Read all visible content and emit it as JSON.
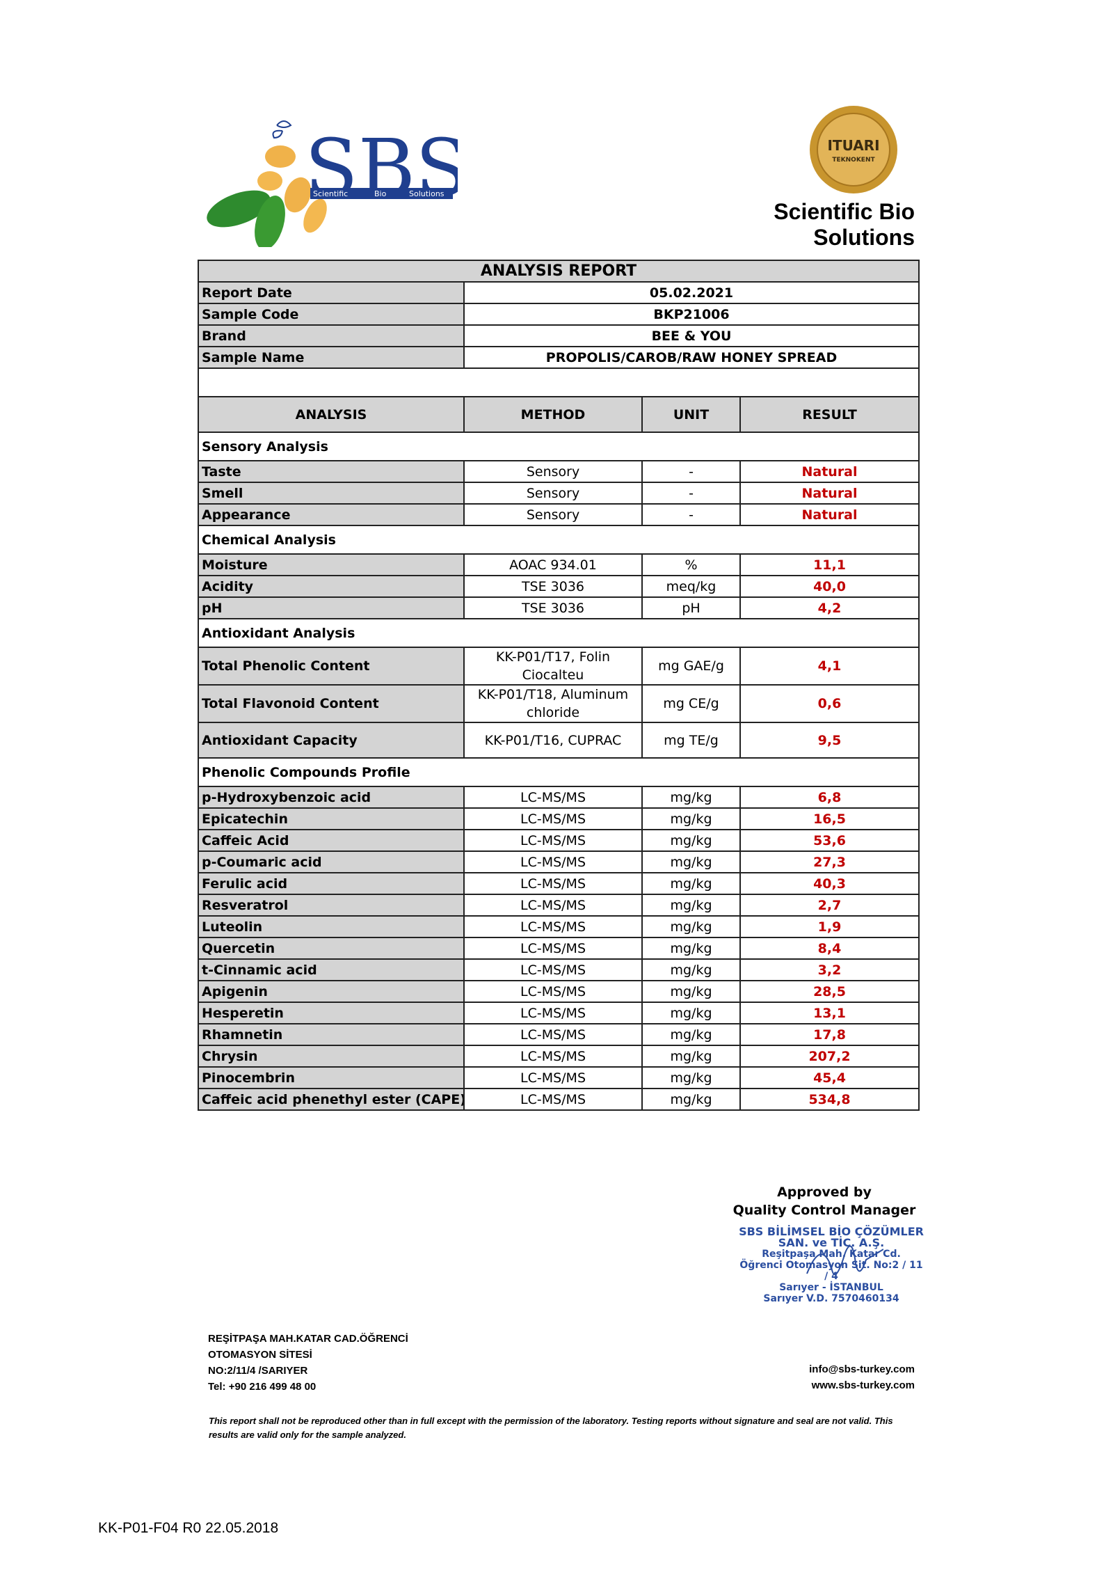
{
  "header": {
    "logo_text": "SBS",
    "logo_tagline": [
      "Scientific",
      "Bio",
      "Solutions"
    ],
    "seal_text": [
      "ITUARI",
      "TEKNOKENT"
    ],
    "company_name": "Scientific Bio Solutions"
  },
  "report": {
    "title": "ANALYSIS REPORT",
    "info": [
      {
        "label": "Report Date",
        "value": "05.02.2021"
      },
      {
        "label": "Sample Code",
        "value": "BKP21006"
      },
      {
        "label": "Brand",
        "value": "BEE & YOU"
      },
      {
        "label": "Sample Name",
        "value": "PROPOLIS/CAROB/RAW HONEY SPREAD"
      }
    ],
    "columns": [
      "ANALYSIS",
      "METHOD",
      "UNIT",
      "RESULT"
    ],
    "sections": [
      {
        "name": "Sensory Analysis",
        "rows": [
          [
            "Taste",
            "Sensory",
            "-",
            "Natural"
          ],
          [
            "Smell",
            "Sensory",
            "-",
            "Natural"
          ],
          [
            "Appearance",
            "Sensory",
            "-",
            "Natural"
          ]
        ]
      },
      {
        "name": "Chemical Analysis",
        "rows": [
          [
            "Moisture",
            "AOAC 934.01",
            "%",
            "11,1"
          ],
          [
            "Acidity",
            "TSE 3036",
            "meq/kg",
            "40,0"
          ],
          [
            "pH",
            "TSE 3036",
            "pH",
            "4,2"
          ]
        ]
      },
      {
        "name": "Antioxidant Analysis",
        "rows": [
          [
            "Total Phenolic Content",
            "KK-P01/T17, Folin Ciocalteu",
            "mg GAE/g",
            "4,1"
          ],
          [
            "Total  Flavonoid Content",
            "KK-P01/T18, Aluminum chloride",
            "mg CE/g",
            "0,6"
          ],
          [
            "Antioxidant Capacity",
            "KK-P01/T16, CUPRAC",
            "mg TE/g",
            "9,5"
          ]
        ]
      },
      {
        "name": "Phenolic Compounds Profile",
        "rows": [
          [
            "p-Hydroxybenzoic acid",
            "LC-MS/MS",
            "mg/kg",
            "6,8"
          ],
          [
            "Epicatechin",
            "LC-MS/MS",
            "mg/kg",
            "16,5"
          ],
          [
            "Caffeic Acid",
            "LC-MS/MS",
            "mg/kg",
            "53,6"
          ],
          [
            "p-Coumaric acid",
            "LC-MS/MS",
            "mg/kg",
            "27,3"
          ],
          [
            "Ferulic acid",
            "LC-MS/MS",
            "mg/kg",
            "40,3"
          ],
          [
            "Resveratrol",
            "LC-MS/MS",
            "mg/kg",
            "2,7"
          ],
          [
            "Luteolin",
            "LC-MS/MS",
            "mg/kg",
            "1,9"
          ],
          [
            "Quercetin",
            "LC-MS/MS",
            "mg/kg",
            "8,4"
          ],
          [
            "t-Cinnamic acid",
            "LC-MS/MS",
            "mg/kg",
            "3,2"
          ],
          [
            "Apigenin",
            "LC-MS/MS",
            "mg/kg",
            "28,5"
          ],
          [
            "Hesperetin",
            "LC-MS/MS",
            "mg/kg",
            "13,1"
          ],
          [
            "Rhamnetin",
            "LC-MS/MS",
            "mg/kg",
            "17,8"
          ],
          [
            "Chrysin",
            "LC-MS/MS",
            "mg/kg",
            "207,2"
          ],
          [
            "Pinocembrin",
            "LC-MS/MS",
            "mg/kg",
            "45,4"
          ],
          [
            "Caffeic acid phenethyl ester (CAPE)",
            "LC-MS/MS",
            "mg/kg",
            "534,8"
          ]
        ]
      }
    ]
  },
  "approval": {
    "line1": "Approved by",
    "line2": "Quality Control Manager",
    "stamp": [
      "SBS BİLİMSEL BİO ÇÖZÜMLER",
      "SAN. ve TİC. A.Ş.",
      "Reşitpaşa Mah. Katar Cd.",
      "Öğrenci Otomasyon Sit. No:2 / 11 / 4",
      "Sarıyer - İSTANBUL",
      "Sarıyer V.D. 7570460134"
    ]
  },
  "footer": {
    "address": [
      "REŞİTPAŞA MAH.KATAR CAD.ÖĞRENCİ",
      "OTOMASYON SİTESİ",
      "NO:2/11/4 /SARIYER",
      "Tel: +90 216 499 48 00"
    ],
    "email": "info@sbs-turkey.com",
    "website": "www.sbs-turkey.com",
    "disclaimer": "This report shall not be reproduced other than in full except with the permission of the laboratory. Testing reports without  signature and seal are not valid. This results are valid only for the sample analyzed.",
    "form_code": "KK-P01-F04 R0 22.05.2018"
  },
  "colors": {
    "result_red": "#c00000",
    "header_gray": "#d4d4d4",
    "logo_blue": "#1f3f8f",
    "stamp_blue": "#2b4ea0"
  }
}
